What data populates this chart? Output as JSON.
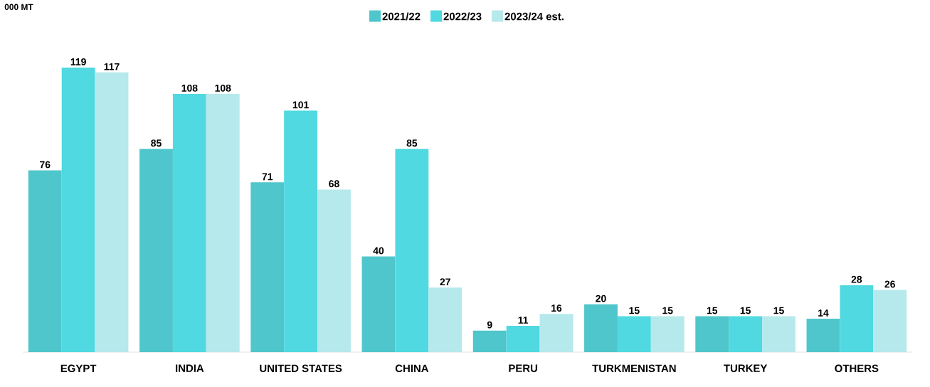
{
  "chart_data": {
    "type": "bar",
    "annotations": [
      "000 MT"
    ],
    "categories": [
      "EGYPT",
      "INDIA",
      "UNITED STATES",
      "CHINA",
      "PERU",
      "TURKMENISTAN",
      "TURKEY",
      "OTHERS"
    ],
    "series": [
      {
        "name": "2021/22",
        "color": "#4fc6cb",
        "values": [
          76,
          85,
          71,
          40,
          9,
          20,
          15,
          14
        ]
      },
      {
        "name": "2022/23",
        "color": "#50d9e0",
        "values": [
          119,
          108,
          101,
          85,
          11,
          15,
          15,
          28
        ]
      },
      {
        "name": "2023/24 est.",
        "color": "#b6e9ec",
        "values": [
          117,
          108,
          68,
          27,
          16,
          15,
          15,
          26
        ]
      }
    ],
    "data_labels": true,
    "legend": "top"
  }
}
